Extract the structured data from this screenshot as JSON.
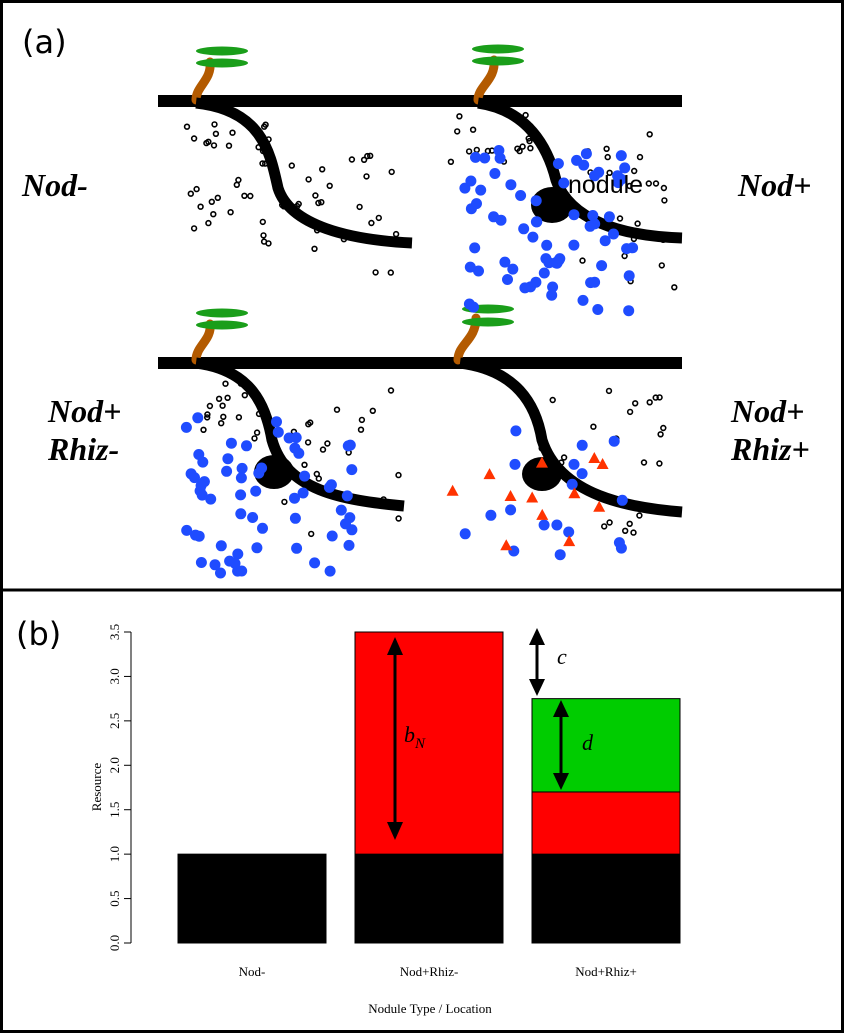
{
  "panel_a": {
    "label": "(a)",
    "scenarios": [
      {
        "line1": "Nod-",
        "line2": ""
      },
      {
        "line1": "Nod+",
        "line2": "",
        "nodule_label": "nodule"
      },
      {
        "line1": "Nod+",
        "line2": "Rhiz-"
      },
      {
        "line1": "Nod+",
        "line2": "Rhiz+"
      }
    ]
  },
  "panel_b": {
    "label": "(b)",
    "annotations": {
      "c": "c",
      "d": "d",
      "bN_main": "b",
      "bN_sub": "N"
    }
  },
  "colors": {
    "black": "#000000",
    "red": "#ff0000",
    "green": "#00cc00",
    "blue": "#1f4cff",
    "triangle": "#ff3300",
    "stem": "#b35a00",
    "leaf": "#1a9e1a"
  },
  "chart_data": {
    "type": "bar",
    "stacked": true,
    "categories": [
      "Nod-",
      "Nod+Rhiz-",
      "Nod+Rhiz+"
    ],
    "series": [
      {
        "color": "#000000",
        "values": [
          1.0,
          1.0,
          1.0
        ]
      },
      {
        "color": "#ff0000",
        "values": [
          0.0,
          2.5,
          0.7
        ]
      },
      {
        "color": "#00cc00",
        "values": [
          0.0,
          0.0,
          1.05
        ]
      }
    ],
    "ylim": [
      0,
      3.5
    ],
    "yticks": [
      "0.0",
      "0.5",
      "1.0",
      "1.5",
      "2.0",
      "2.5",
      "3.0",
      "3.5"
    ],
    "xlabel": "Nodule Type / Location",
    "ylabel": "Resource",
    "grid": false,
    "legend": "none"
  }
}
